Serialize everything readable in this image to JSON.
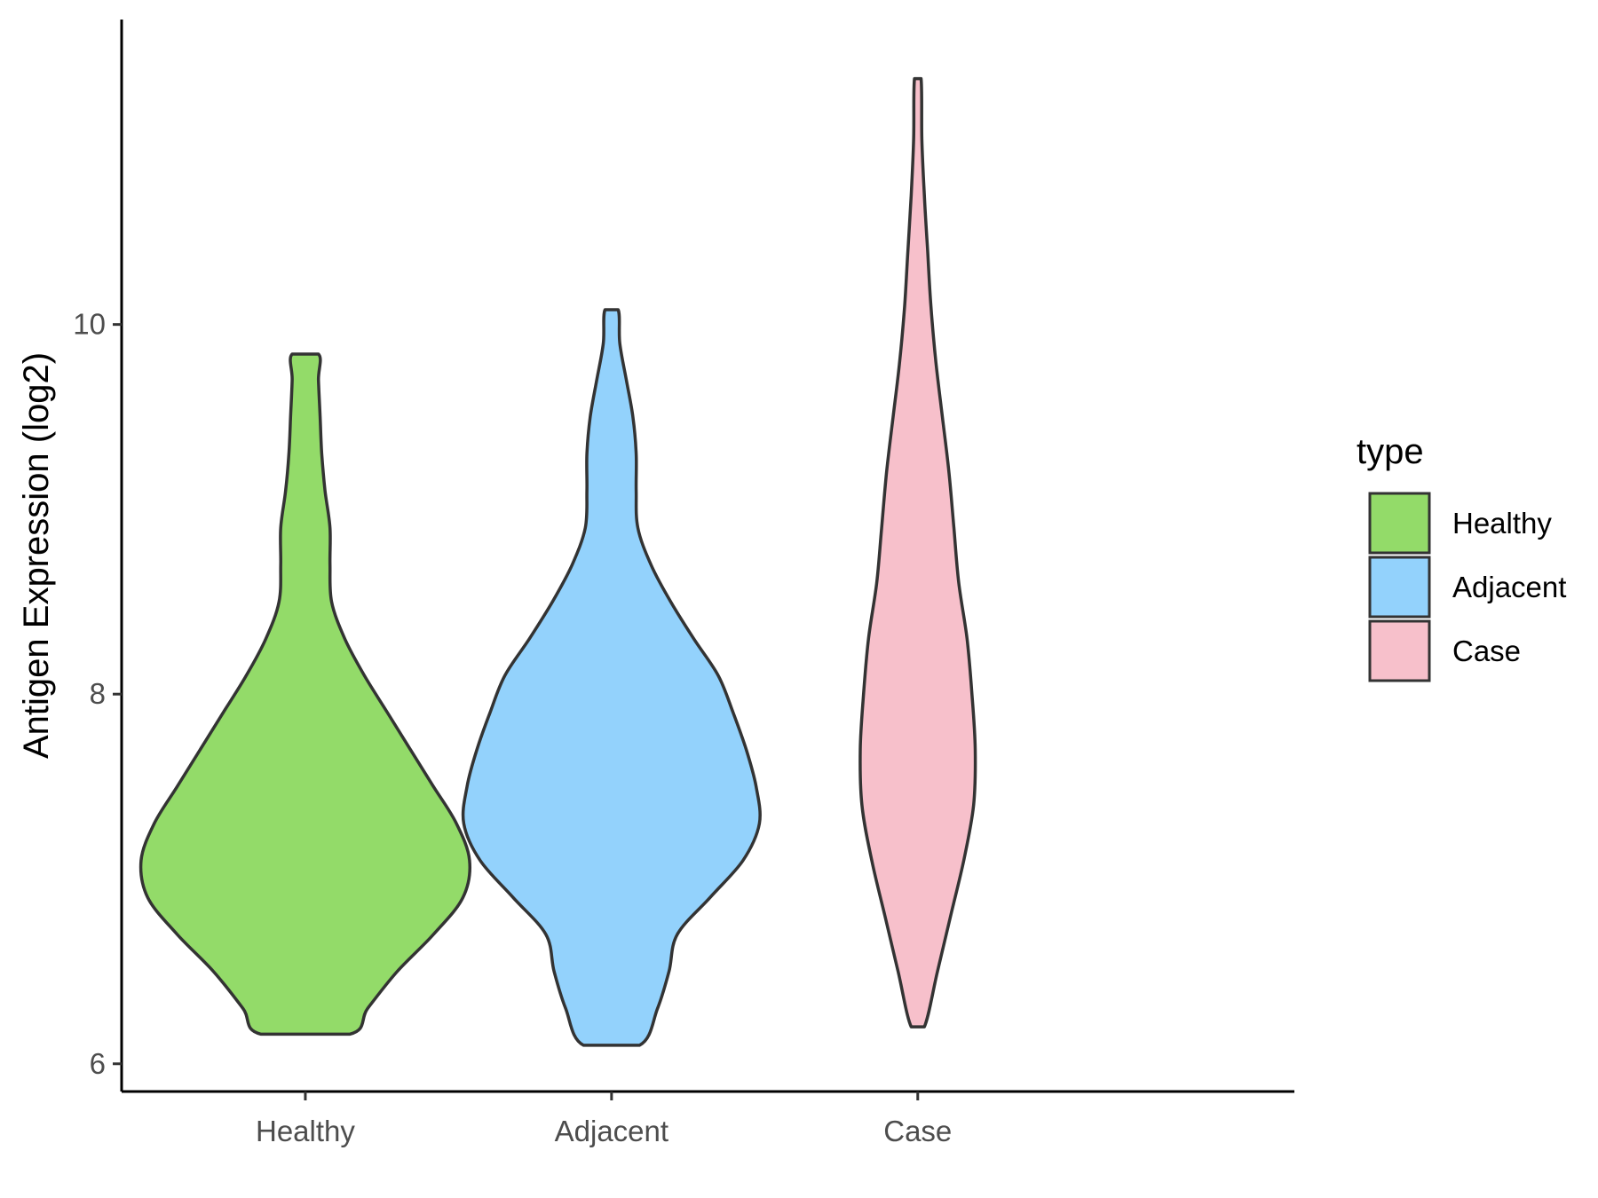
{
  "chart_data": {
    "type": "violin",
    "categories": [
      "Healthy",
      "Adjacent",
      "Case"
    ],
    "ylabel": "Antigen Expression (log2)",
    "xlabel": "",
    "ylim": [
      5.85,
      11.65
    ],
    "yticks": [
      6,
      8,
      10
    ],
    "legend": {
      "title": "type",
      "position": "right",
      "entries": [
        "Healthy",
        "Adjacent",
        "Case"
      ]
    },
    "colors": {
      "Healthy": "#93DB69",
      "Adjacent": "#93D2FC",
      "Case": "#F7C0CB",
      "outline": "#333333"
    },
    "series": [
      {
        "category": "Healthy",
        "min": 6.16,
        "max": 9.84,
        "profile": [
          [
            6.16,
            0.27
          ],
          [
            6.3,
            0.38
          ],
          [
            6.5,
            0.56
          ],
          [
            6.7,
            0.78
          ],
          [
            6.9,
            0.96
          ],
          [
            7.1,
            1.0
          ],
          [
            7.3,
            0.92
          ],
          [
            7.5,
            0.78
          ],
          [
            7.7,
            0.64
          ],
          [
            7.9,
            0.5
          ],
          [
            8.1,
            0.36
          ],
          [
            8.3,
            0.24
          ],
          [
            8.5,
            0.16
          ],
          [
            8.7,
            0.15
          ],
          [
            8.9,
            0.15
          ],
          [
            9.1,
            0.12
          ],
          [
            9.3,
            0.1
          ],
          [
            9.5,
            0.09
          ],
          [
            9.7,
            0.08
          ],
          [
            9.84,
            0.08
          ]
        ]
      },
      {
        "category": "Adjacent",
        "min": 6.1,
        "max": 10.08,
        "profile": [
          [
            6.1,
            0.17
          ],
          [
            6.3,
            0.28
          ],
          [
            6.5,
            0.35
          ],
          [
            6.7,
            0.4
          ],
          [
            6.9,
            0.6
          ],
          [
            7.1,
            0.8
          ],
          [
            7.3,
            0.9
          ],
          [
            7.5,
            0.88
          ],
          [
            7.7,
            0.82
          ],
          [
            7.9,
            0.74
          ],
          [
            8.1,
            0.65
          ],
          [
            8.3,
            0.5
          ],
          [
            8.5,
            0.36
          ],
          [
            8.7,
            0.24
          ],
          [
            8.9,
            0.16
          ],
          [
            9.1,
            0.15
          ],
          [
            9.3,
            0.15
          ],
          [
            9.5,
            0.13
          ],
          [
            9.7,
            0.09
          ],
          [
            9.9,
            0.05
          ],
          [
            10.08,
            0.04
          ]
        ]
      },
      {
        "category": "Case",
        "min": 6.2,
        "max": 11.33,
        "profile": [
          [
            6.2,
            0.04
          ],
          [
            6.5,
            0.12
          ],
          [
            6.8,
            0.2
          ],
          [
            7.1,
            0.28
          ],
          [
            7.4,
            0.34
          ],
          [
            7.7,
            0.35
          ],
          [
            8.0,
            0.33
          ],
          [
            8.3,
            0.3
          ],
          [
            8.6,
            0.25
          ],
          [
            8.9,
            0.22
          ],
          [
            9.2,
            0.19
          ],
          [
            9.5,
            0.15
          ],
          [
            9.8,
            0.11
          ],
          [
            10.1,
            0.08
          ],
          [
            10.4,
            0.06
          ],
          [
            10.7,
            0.04
          ],
          [
            11.0,
            0.025
          ],
          [
            11.33,
            0.02
          ]
        ]
      }
    ]
  }
}
